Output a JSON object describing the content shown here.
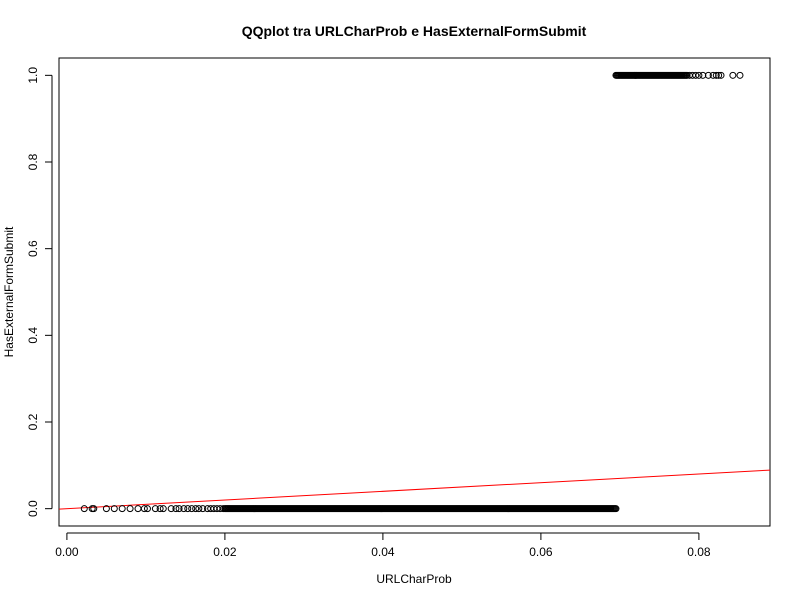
{
  "chart_data": {
    "type": "scatter",
    "title": "QQplot tra URLCharProb e HasExternalFormSubmit",
    "xlabel": "URLCharProb",
    "ylabel": "HasExternalFormSubmit",
    "xlim": [
      -0.001,
      0.089
    ],
    "ylim": [
      -0.04,
      1.04
    ],
    "x_ticks": [
      "0.00",
      "0.02",
      "0.04",
      "0.06",
      "0.08"
    ],
    "y_ticks": [
      "0.0",
      "0.2",
      "0.4",
      "0.6",
      "0.8",
      "1.0"
    ],
    "grid": false,
    "legend": "none",
    "marker": "open-circle",
    "point_color": "#000000",
    "reference_line": {
      "type": "identity",
      "intercept": 0,
      "slope": 1,
      "color": "#ff0000"
    },
    "series": [
      {
        "description_group": "zeros-sparse",
        "x": [
          0.0022,
          0.0032,
          0.0034,
          0.005,
          0.006,
          0.007,
          0.008,
          0.009,
          0.0098,
          0.0102,
          0.0112,
          0.0118,
          0.0122,
          0.0132,
          0.0138,
          0.0142,
          0.0148,
          0.0153,
          0.0158,
          0.0163,
          0.0167,
          0.0172,
          0.0178,
          0.0182,
          0.0186,
          0.019,
          0.0194,
          0.0198
        ],
        "y": [
          0,
          0,
          0,
          0,
          0,
          0,
          0,
          0,
          0,
          0,
          0,
          0,
          0,
          0,
          0,
          0,
          0,
          0,
          0,
          0,
          0,
          0,
          0,
          0,
          0,
          0,
          0,
          0
        ]
      },
      {
        "description_group": "zeros-dense",
        "x_range": [
          0.02,
          0.0695
        ],
        "y": 0
      },
      {
        "description_group": "ones-dense",
        "x_range": [
          0.0695,
          0.0785
        ],
        "y": 1
      },
      {
        "description_group": "ones-sparse",
        "x": [
          0.0788,
          0.0792,
          0.0796,
          0.08,
          0.0805,
          0.0812,
          0.0818,
          0.0822,
          0.0825,
          0.0828,
          0.0843,
          0.0852
        ],
        "y": [
          1,
          1,
          1,
          1,
          1,
          1,
          1,
          1,
          1,
          1,
          1,
          1
        ]
      }
    ]
  }
}
